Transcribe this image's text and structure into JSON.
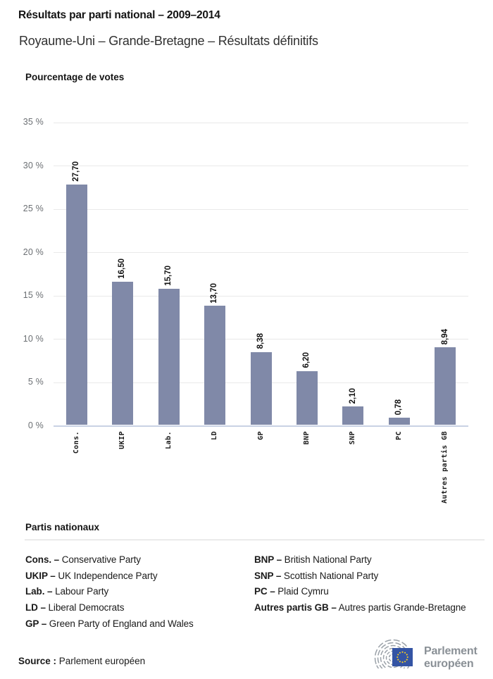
{
  "header": {
    "title": "Résultats par parti national – 2009–2014",
    "subtitle": "Royaume-Uni – Grande-Bretagne – Résultats définitifs"
  },
  "chart_data": {
    "type": "bar",
    "title": "Résultats par parti national – 2009–2014",
    "subtitle": "Royaume-Uni – Grande-Bretagne – Résultats définitifs",
    "ylabel": "Pourcentage de votes",
    "xlabel": "",
    "categories": [
      "Cons.",
      "UKIP",
      "Lab.",
      "LD",
      "GP",
      "BNP",
      "SNP",
      "PC",
      "Autres partis GB"
    ],
    "values": [
      27.7,
      16.5,
      15.7,
      13.7,
      8.38,
      6.2,
      2.1,
      0.78,
      8.94
    ],
    "value_labels": [
      "27,70",
      "16,50",
      "15,70",
      "13,70",
      "8,38",
      "6,20",
      "2,10",
      "0,78",
      "8,94"
    ],
    "ytick_values": [
      0,
      5,
      10,
      15,
      20,
      25,
      30,
      35
    ],
    "ytick_suffix": " %",
    "ylim": [
      0,
      35
    ],
    "grid": true,
    "legend_position": "none",
    "bar_color": "#8089A8"
  },
  "legend": {
    "heading": "Partis nationaux",
    "separator": "–",
    "columns": [
      [
        {
          "abbr": "Cons.",
          "name": "Conservative Party"
        },
        {
          "abbr": "UKIP",
          "name": "UK Independence Party"
        },
        {
          "abbr": "Lab.",
          "name": "Labour Party"
        },
        {
          "abbr": "LD",
          "name": "Liberal Democrats"
        },
        {
          "abbr": "GP",
          "name": "Green Party of England and Wales"
        }
      ],
      [
        {
          "abbr": "BNP",
          "name": "British National Party"
        },
        {
          "abbr": "SNP",
          "name": "Scottish National Party"
        },
        {
          "abbr": "PC",
          "name": "Plaid Cymru"
        },
        {
          "abbr": "Autres partis GB",
          "name": "Autres partis Grande-Bretagne"
        }
      ]
    ]
  },
  "footer": {
    "source_label": "Source :",
    "source_value": "Parlement européen",
    "logo": {
      "line1": "Parlement",
      "line2": "européen",
      "arc_color": "#9AA1A8",
      "flag_color": "#3454A4",
      "star_color": "#FFD21C",
      "text_color": "#8A9096"
    }
  },
  "colors": {
    "bar": "#8089A8",
    "gridline": "#E9E9E9",
    "axis_line": "#C9D2E4",
    "y_tick_text": "#6B6F73",
    "x_tick_text": "#1A1A1A",
    "text": "#1A1A1A"
  }
}
